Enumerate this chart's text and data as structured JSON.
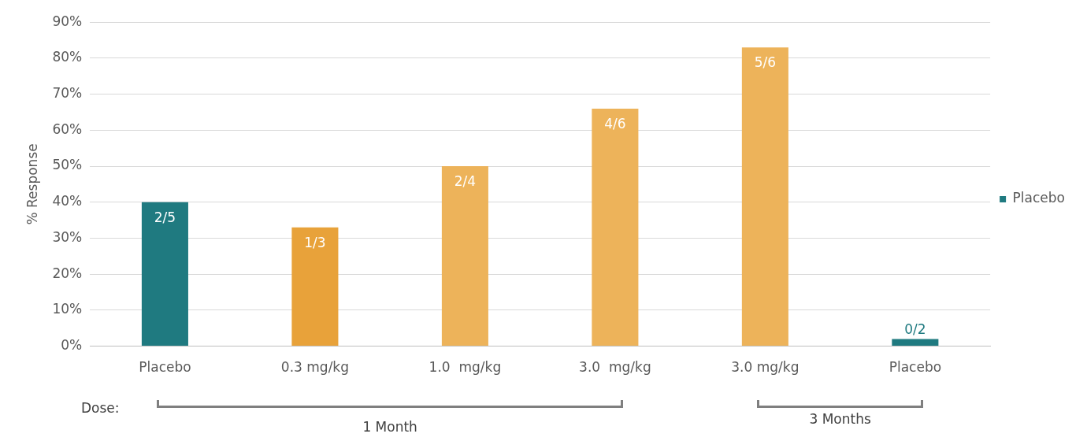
{
  "chart_data": {
    "type": "bar",
    "ylabel": "% Response",
    "categories": [
      "Placebo",
      "0.3 mg/kg",
      "1.0  mg/kg",
      "3.0  mg/kg",
      "3.0 mg/kg",
      "Placebo"
    ],
    "series": [
      {
        "name": "Placebo",
        "color": "#1f7a80",
        "values": [
          40,
          null,
          null,
          null,
          null,
          2
        ]
      },
      {
        "colors": [
          null,
          "#e8a23a",
          "#edb35a",
          "#edb35a",
          "#edb35a",
          null
        ],
        "color": "#edb35a",
        "values": [
          null,
          33,
          50,
          66,
          83,
          null
        ]
      }
    ],
    "stacked": true,
    "ylim": [
      0,
      90
    ],
    "yticks": [
      {
        "value": 0,
        "label": "0%"
      },
      {
        "value": 10,
        "label": "10%"
      },
      {
        "value": 20,
        "label": "20%"
      },
      {
        "value": 30,
        "label": "30%"
      },
      {
        "value": 40,
        "label": "40%"
      },
      {
        "value": 50,
        "label": "50%"
      },
      {
        "value": 60,
        "label": "60%"
      },
      {
        "value": 70,
        "label": "70%"
      },
      {
        "value": 80,
        "label": "80%"
      },
      {
        "value": 90,
        "label": "90%"
      }
    ],
    "grid": "y",
    "legend": "right",
    "annotations": [
      "Dose:",
      "1 Month",
      "3 Months",
      {
        "text": "2/5",
        "x": "Placebo",
        "y": 40
      },
      {
        "text": "1/3",
        "x": "0.3 mg/kg",
        "y": 33
      },
      {
        "text": "2/4",
        "x": "1.0  mg/kg",
        "y": 50
      },
      {
        "text": "4/6",
        "x": "3.0  mg/kg",
        "y": 66
      },
      {
        "text": "5/6",
        "x": "3.0 mg/kg",
        "y": 83
      },
      {
        "text": "0/2",
        "y": 2
      }
    ]
  }
}
